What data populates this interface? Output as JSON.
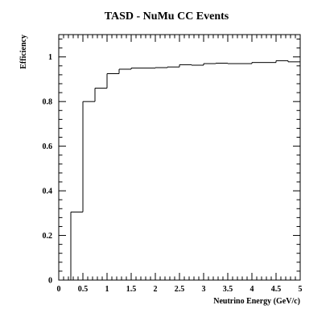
{
  "chart_data": {
    "type": "line",
    "style": "step-histogram",
    "title": "TASD - NuMu CC Events",
    "xlabel": "Neutrino Energy (GeV/c)",
    "ylabel": "Efficiency",
    "xlim": [
      0,
      5
    ],
    "ylim": [
      0,
      1.1
    ],
    "x_ticks": [
      0,
      0.5,
      1,
      1.5,
      2,
      2.5,
      3,
      3.5,
      4,
      4.5,
      5
    ],
    "x_tick_labels": [
      "0",
      "0.5",
      "1",
      "1.5",
      "2",
      "2.5",
      "3",
      "3.5",
      "4",
      "4.5",
      "5"
    ],
    "y_ticks": [
      0,
      0.2,
      0.4,
      0.6,
      0.8,
      1
    ],
    "y_tick_labels": [
      "0",
      "0.2",
      "0.4",
      "0.6",
      "0.8",
      "1"
    ],
    "grid": false,
    "bin_width": 0.25,
    "bins": [
      {
        "x0": 0.0,
        "x1": 0.25,
        "value": 0.0
      },
      {
        "x0": 0.25,
        "x1": 0.5,
        "value": 0.305
      },
      {
        "x0": 0.5,
        "x1": 0.75,
        "value": 0.8
      },
      {
        "x0": 0.75,
        "x1": 1.0,
        "value": 0.86
      },
      {
        "x0": 1.0,
        "x1": 1.25,
        "value": 0.925
      },
      {
        "x0": 1.25,
        "x1": 1.5,
        "value": 0.945
      },
      {
        "x0": 1.5,
        "x1": 1.75,
        "value": 0.95
      },
      {
        "x0": 1.75,
        "x1": 2.0,
        "value": 0.95
      },
      {
        "x0": 2.0,
        "x1": 2.25,
        "value": 0.952
      },
      {
        "x0": 2.25,
        "x1": 2.5,
        "value": 0.955
      },
      {
        "x0": 2.5,
        "x1": 2.75,
        "value": 0.965
      },
      {
        "x0": 2.75,
        "x1": 3.0,
        "value": 0.963
      },
      {
        "x0": 3.0,
        "x1": 3.25,
        "value": 0.97
      },
      {
        "x0": 3.25,
        "x1": 3.5,
        "value": 0.972
      },
      {
        "x0": 3.5,
        "x1": 3.75,
        "value": 0.97
      },
      {
        "x0": 3.75,
        "x1": 4.0,
        "value": 0.97
      },
      {
        "x0": 4.0,
        "x1": 4.25,
        "value": 0.975
      },
      {
        "x0": 4.25,
        "x1": 4.5,
        "value": 0.975
      },
      {
        "x0": 4.5,
        "x1": 4.75,
        "value": 0.983
      },
      {
        "x0": 4.75,
        "x1": 5.0,
        "value": 0.978
      }
    ],
    "line_color": "#000000"
  }
}
